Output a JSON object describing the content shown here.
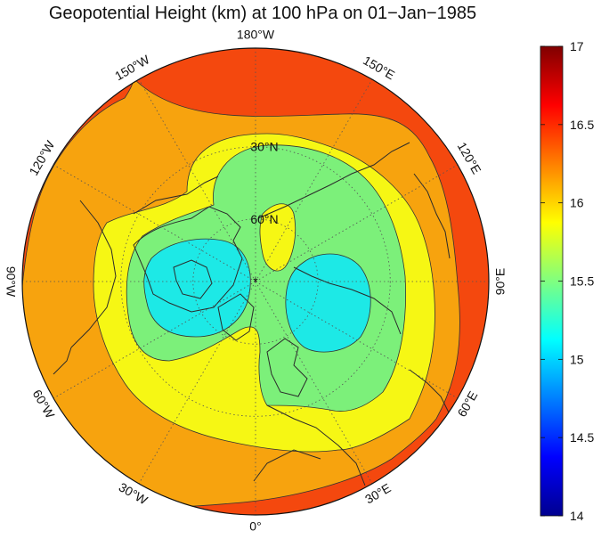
{
  "title": "Geopotential Height (km) at 100 hPa on 01−Jan−1985",
  "map": {
    "projection": "north-polar-stereographic",
    "lon_labels": [
      {
        "lon": 180,
        "text": "180°W"
      },
      {
        "lon": 150,
        "text": "150°E"
      },
      {
        "lon": 120,
        "text": "120°E"
      },
      {
        "lon": 90,
        "text": "90°E"
      },
      {
        "lon": 60,
        "text": "60°E"
      },
      {
        "lon": 30,
        "text": "30°E"
      },
      {
        "lon": 0,
        "text": "0°"
      },
      {
        "lon": -30,
        "text": "30°W"
      },
      {
        "lon": -60,
        "text": "60°W"
      },
      {
        "lon": -90,
        "text": "90°W"
      },
      {
        "lon": -120,
        "text": "120°W"
      },
      {
        "lon": -150,
        "text": "150°W"
      }
    ],
    "lat_labels": [
      {
        "lat": 30,
        "text": "30°N"
      },
      {
        "lat": 60,
        "text": "60°N"
      }
    ],
    "contour_levels_km": [
      15.5,
      15.75,
      16.0,
      16.25
    ],
    "field_colors": {
      "lt_15_5": "#1de9e6",
      "15_5_to_15_75": "#7cf07a",
      "15_75_to_16_0": "#f6f714",
      "16_0_to_16_25": "#f7a30e",
      "gt_16_25": "#f4480e"
    },
    "coast_color": "#2a2a2a"
  },
  "colorbar": {
    "min": 14,
    "max": 17,
    "ticks": [
      "14",
      "14.5",
      "15",
      "15.5",
      "16",
      "16.5",
      "17"
    ],
    "colormap": "jet"
  }
}
